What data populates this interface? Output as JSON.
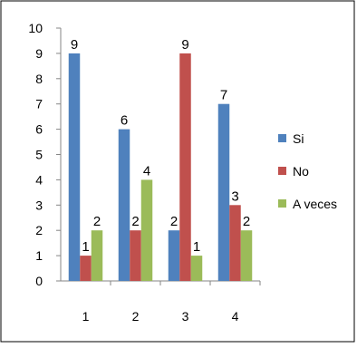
{
  "chart_data": {
    "type": "bar",
    "categories": [
      "1",
      "2",
      "3",
      "4"
    ],
    "series": [
      {
        "name": "Si",
        "color": "#4F81BD",
        "values": [
          9,
          6,
          2,
          7
        ]
      },
      {
        "name": "No",
        "color": "#C0504D",
        "values": [
          1,
          2,
          9,
          3
        ]
      },
      {
        "name": "A veces",
        "color": "#9BBB59",
        "values": [
          2,
          4,
          1,
          2
        ]
      }
    ],
    "ylim": [
      0,
      10
    ],
    "yticks": [
      "0",
      "1",
      "2",
      "3",
      "4",
      "5",
      "6",
      "7",
      "8",
      "9",
      "10"
    ],
    "grid": false,
    "legend": "right",
    "data_labels": true
  }
}
